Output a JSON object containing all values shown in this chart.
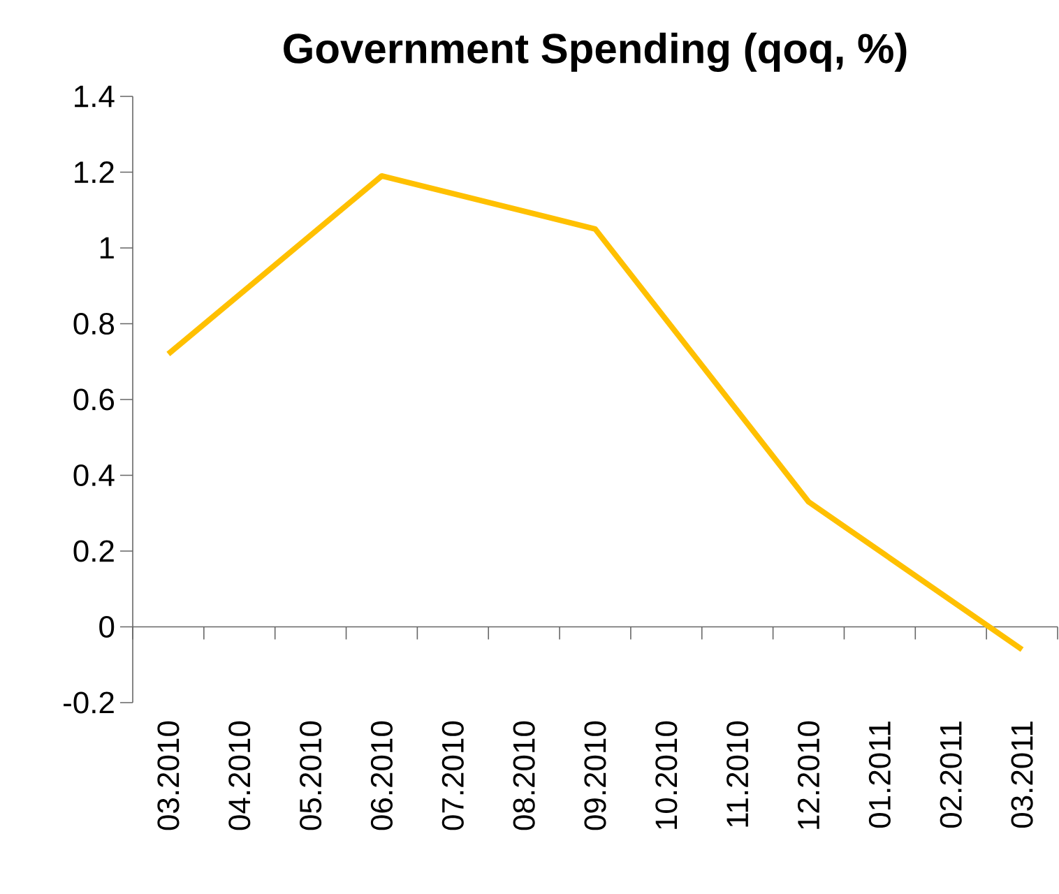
{
  "chart_data": {
    "type": "line",
    "title": "Government Spending (qoq, %)",
    "categories": [
      "03.2010",
      "04.2010",
      "05.2010",
      "06.2010",
      "07.2010",
      "08.2010",
      "09.2010",
      "10.2010",
      "11.2010",
      "12.2010",
      "01.2011",
      "02.2011",
      "03.2011"
    ],
    "values": [
      0.72,
      null,
      null,
      1.19,
      null,
      null,
      1.05,
      null,
      null,
      0.33,
      null,
      null,
      -0.06
    ],
    "color": "#ffc000",
    "marker": "none",
    "line_style": "solid",
    "ylim": [
      -0.2,
      1.4
    ],
    "yticks": [
      -0.2,
      0,
      0.2,
      0.4,
      0.6,
      0.8,
      1,
      1.2,
      1.4
    ]
  }
}
